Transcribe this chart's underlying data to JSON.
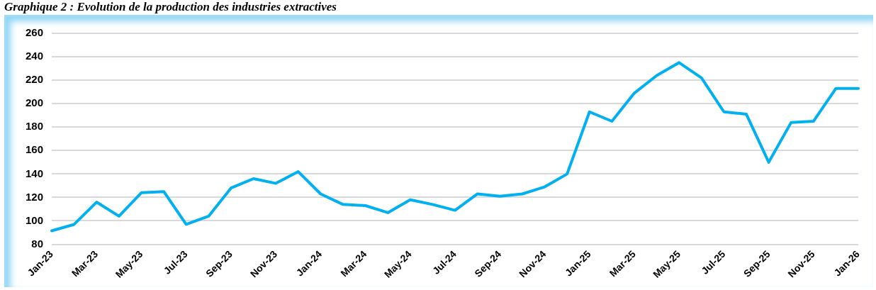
{
  "chart_data": {
    "type": "line",
    "title": "Graphique 2 : Evolution de la production des industries extractives",
    "categories": [
      "Jan-23",
      null,
      "Mar-23",
      null,
      "May-23",
      null,
      "Jul-23",
      null,
      "Sep-23",
      null,
      "Nov-23",
      null,
      "Jan-24",
      null,
      "Mar-24",
      null,
      "May-24",
      null,
      "Jul-24",
      null,
      "Sep-24",
      null,
      "Nov-24",
      null,
      "Jan-25",
      null,
      "Mar-25",
      null,
      "May-25",
      null,
      "Jul-25",
      null,
      "Sep-25",
      null,
      "Nov-25",
      null,
      "Jan-26"
    ],
    "series": [
      {
        "color": "#00b0f0",
        "values": [
          91.5,
          97,
          116,
          104,
          124,
          125,
          97,
          104,
          128,
          136,
          132,
          142,
          123,
          114,
          113,
          107,
          118,
          114,
          109,
          123,
          121,
          123,
          129,
          140,
          193,
          185,
          209,
          224,
          235,
          222,
          193,
          191,
          150,
          184,
          185,
          213,
          213
        ]
      }
    ],
    "ylim": [
      80,
      260
    ],
    "yticks": [
      80,
      100,
      120,
      140,
      160,
      180,
      200,
      220,
      240,
      260
    ],
    "grid": "y",
    "legend": false,
    "marker": "none",
    "line_style": "solid"
  }
}
